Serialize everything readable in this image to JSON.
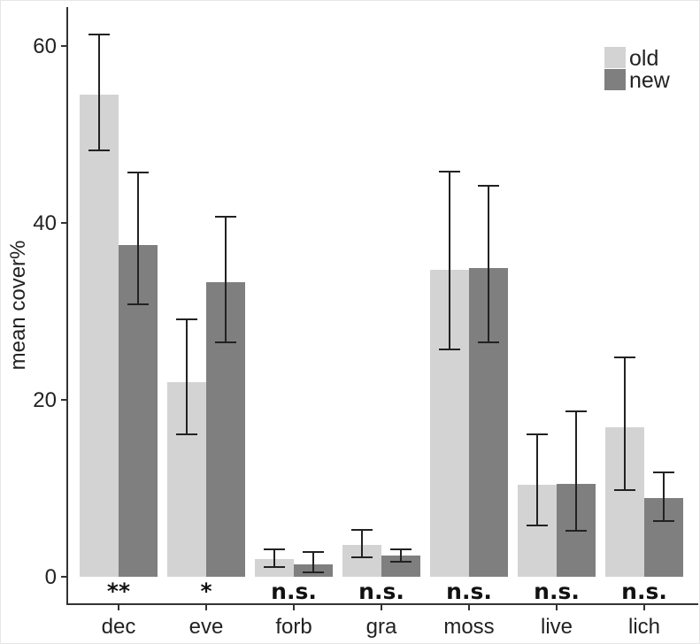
{
  "chart_data": {
    "type": "bar",
    "ylabel": "mean cover%",
    "xlabel": "",
    "ylim": [
      0,
      64
    ],
    "yticks": [
      0,
      20,
      40,
      60
    ],
    "categories": [
      "dec",
      "eve",
      "forb",
      "gra",
      "moss",
      "live",
      "lich"
    ],
    "series": [
      {
        "name": "old",
        "color": "#d3d3d3",
        "values": [
          54.5,
          22,
          2,
          3.6,
          34.7,
          10.4,
          16.9
        ],
        "err_low": [
          48.2,
          16.1,
          1.1,
          2.2,
          25.7,
          5.8,
          9.8
        ],
        "err_high": [
          61.3,
          29.1,
          3.1,
          5.3,
          45.8,
          16.1,
          24.8
        ]
      },
      {
        "name": "new",
        "color": "#7f7f7f",
        "values": [
          37.5,
          33.3,
          1.4,
          2.4,
          34.9,
          10.5,
          8.9
        ],
        "err_low": [
          30.8,
          26.5,
          0.5,
          1.7,
          26.5,
          5.2,
          6.3
        ],
        "err_high": [
          45.7,
          40.7,
          2.8,
          3.1,
          44.2,
          18.7,
          11.8
        ]
      }
    ],
    "significance": [
      "**",
      "*",
      "n.s.",
      "n.s.",
      "n.s.",
      "n.s.",
      "n.s."
    ],
    "legend_position": "top-right",
    "grid": false
  }
}
